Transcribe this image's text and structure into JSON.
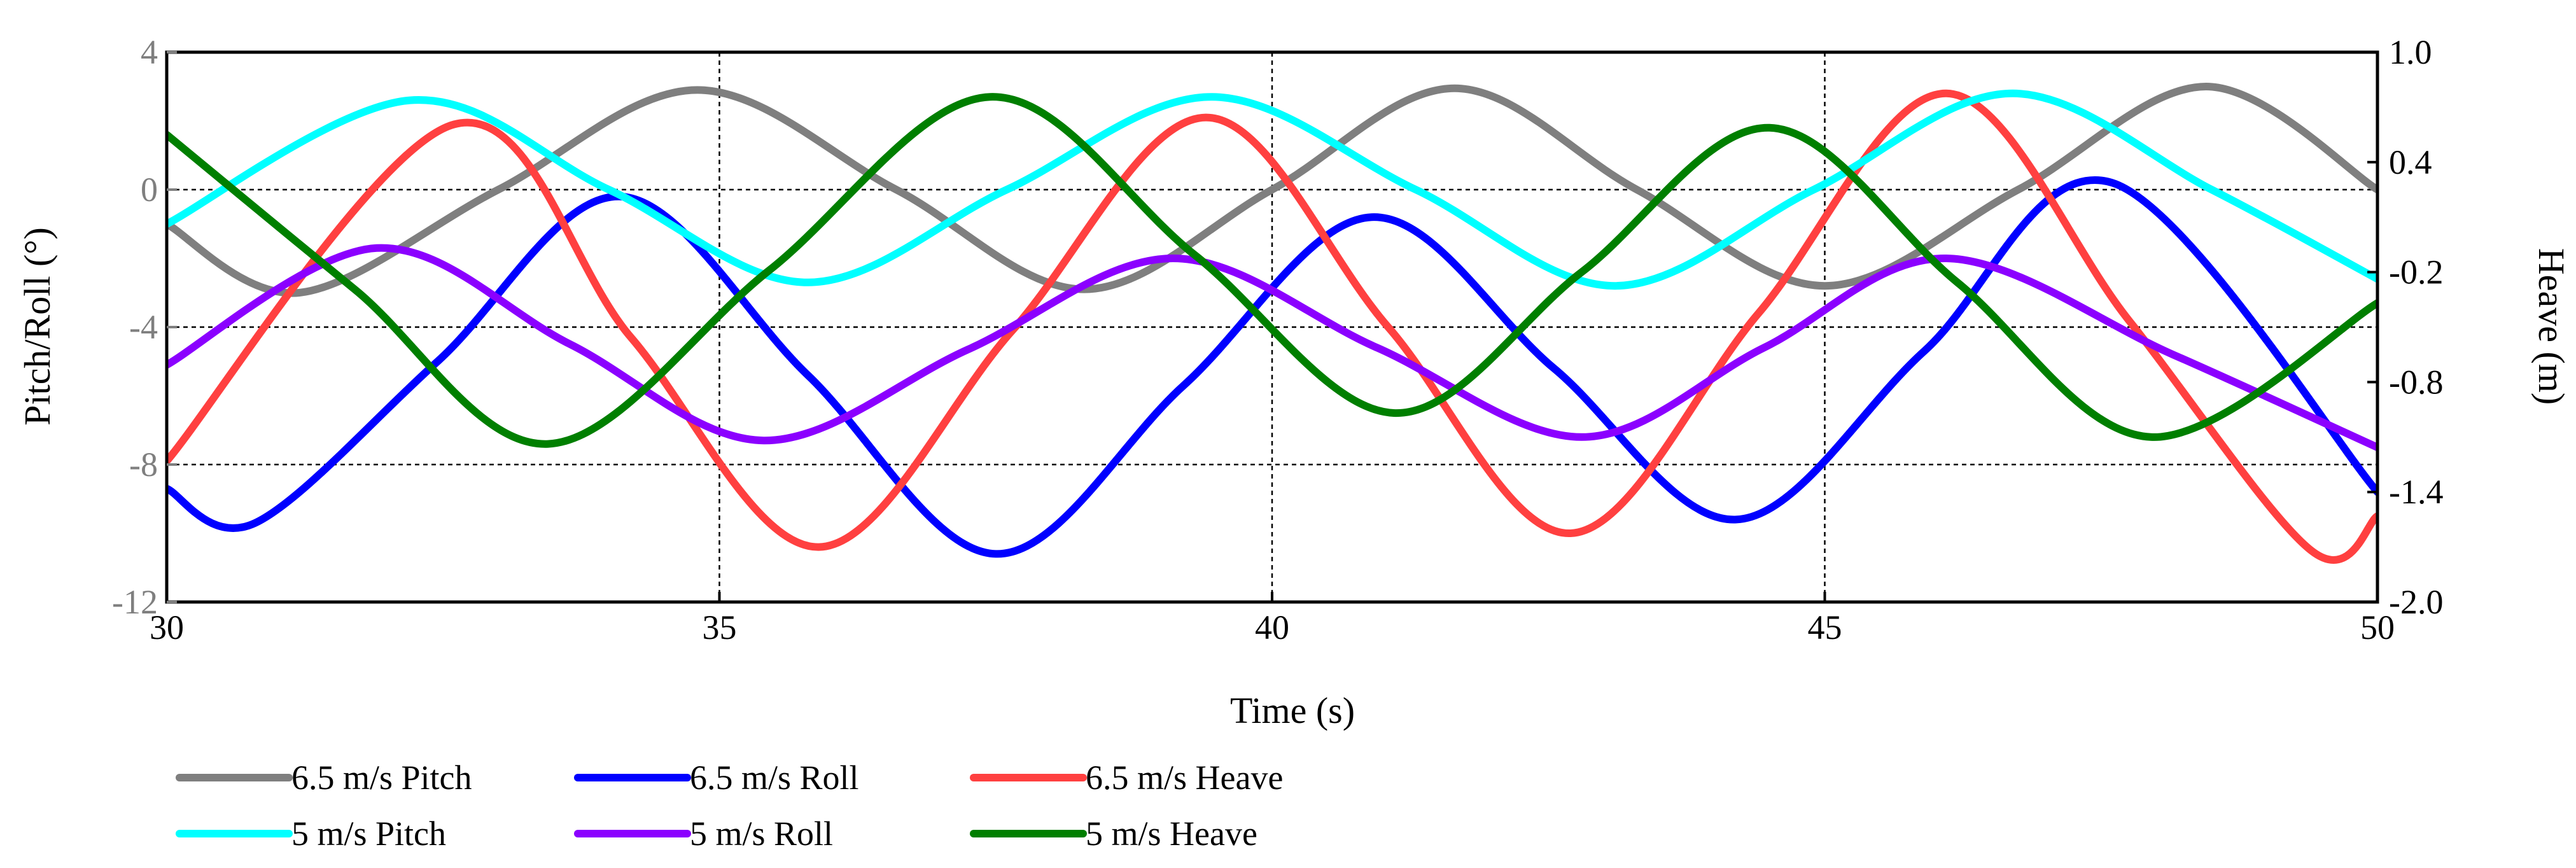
{
  "chart_data": {
    "type": "line",
    "xlabel": "Time (s)",
    "ylabel_left": "Pitch/Roll (°)",
    "ylabel_right": "Heave (m)",
    "xlim": [
      30,
      50
    ],
    "ylim_left": [
      -12,
      4
    ],
    "ylim_right": [
      -2.0,
      1.0
    ],
    "x_ticks": [
      30,
      35,
      40,
      45,
      50
    ],
    "x_tick_labels": [
      "30",
      "35",
      "40",
      "45",
      "50"
    ],
    "y_left_ticks": [
      4,
      0,
      -4,
      -8,
      -12
    ],
    "y_left_tick_labels": [
      "4",
      "0",
      "-4",
      "-8",
      "-12"
    ],
    "y_right_ticks": [
      1.0,
      0.4,
      -0.2,
      -0.8,
      -1.4,
      -2.0
    ],
    "y_right_tick_labels": [
      "1.0",
      "0.4",
      "-0.2",
      "-0.8",
      "-1.4",
      "-2.0"
    ],
    "grid": true,
    "legend_position": "bottom",
    "series": [
      {
        "name": "6.5 m/s Pitch",
        "axis": "left",
        "color": "#7f7f7f",
        "x": [
          30,
          31.2,
          33,
          34.8,
          36.6,
          38.3,
          40,
          41.65,
          43.3,
          45,
          46.75,
          48.45,
          50
        ],
        "y": [
          -1.0,
          -3.0,
          0,
          2.9,
          0,
          -2.9,
          0,
          2.95,
          0,
          -2.8,
          0,
          3.0,
          0
        ]
      },
      {
        "name": "6.5 m/s Roll",
        "axis": "left",
        "color": "#0000ff",
        "x": [
          30,
          30.8,
          32.45,
          34.1,
          35.8,
          37.5,
          39.2,
          40.9,
          42.55,
          44.2,
          45.9,
          47.6,
          50
        ],
        "y": [
          -8.7,
          -9.7,
          -5.0,
          -0.2,
          -5.4,
          -10.6,
          -5.7,
          -0.8,
          -5.2,
          -9.6,
          -4.7,
          0.2,
          -8.8
        ]
      },
      {
        "name": "6.5 m/s Heave",
        "axis": "left",
        "color": "#ff4040",
        "x": [
          30,
          32.6,
          34.2,
          35.9,
          37.65,
          39.4,
          41.05,
          42.7,
          44.4,
          46.1,
          47.75,
          49.4,
          50
        ],
        "y": [
          -7.9,
          1.9,
          -4.3,
          -10.4,
          -4.1,
          2.1,
          -4.0,
          -10.0,
          -3.6,
          2.8,
          -3.8,
          -10.5,
          -9.5
        ]
      },
      {
        "name": "5 m/s Pitch",
        "axis": "left",
        "color": "#00ffff",
        "x": [
          30,
          32.2,
          34,
          35.8,
          37.6,
          39.45,
          41.3,
          43.1,
          44.9,
          46.7,
          48.5,
          50
        ],
        "y": [
          -1.0,
          2.6,
          0,
          -2.7,
          0,
          2.7,
          0,
          -2.8,
          0,
          2.8,
          0,
          -2.6
        ]
      },
      {
        "name": "5 m/s Roll",
        "axis": "left",
        "color": "#8b00ff",
        "x": [
          30,
          31.9,
          33.65,
          35.4,
          37.25,
          39.1,
          40.95,
          42.8,
          44.45,
          46.1,
          48.15,
          50
        ],
        "y": [
          -5.1,
          -1.7,
          -4.5,
          -7.3,
          -4.65,
          -2.0,
          -4.6,
          -7.2,
          -4.6,
          -2.0,
          -4.8,
          -7.5
        ]
      },
      {
        "name": "5 m/s Heave",
        "axis": "left",
        "color": "#007f00",
        "x": [
          30,
          31.7,
          33.45,
          35.45,
          37.45,
          39.3,
          41.1,
          42.8,
          44.5,
          46.2,
          47.95,
          50
        ],
        "y": [
          1.6,
          -2.9,
          -7.4,
          -2.35,
          2.7,
          -1.9,
          -6.5,
          -2.4,
          1.8,
          -2.7,
          -7.2,
          -3.3
        ]
      }
    ]
  }
}
